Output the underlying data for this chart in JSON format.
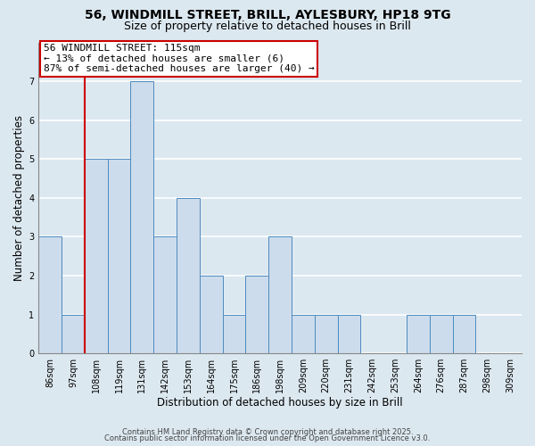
{
  "title_line1": "56, WINDMILL STREET, BRILL, AYLESBURY, HP18 9TG",
  "title_line2": "Size of property relative to detached houses in Brill",
  "xlabel": "Distribution of detached houses by size in Brill",
  "ylabel": "Number of detached properties",
  "bin_labels": [
    "86sqm",
    "97sqm",
    "108sqm",
    "119sqm",
    "131sqm",
    "142sqm",
    "153sqm",
    "164sqm",
    "175sqm",
    "186sqm",
    "198sqm",
    "209sqm",
    "220sqm",
    "231sqm",
    "242sqm",
    "253sqm",
    "264sqm",
    "276sqm",
    "287sqm",
    "298sqm",
    "309sqm"
  ],
  "bar_values": [
    3,
    1,
    5,
    5,
    7,
    3,
    4,
    2,
    1,
    2,
    3,
    1,
    1,
    1,
    0,
    0,
    1,
    1,
    1,
    0,
    0
  ],
  "bar_color": "#ccdcec",
  "bar_edge_color": "#4e8abf",
  "vline_color": "#cc0000",
  "annotation_title": "56 WINDMILL STREET: 115sqm",
  "annotation_line2": "← 13% of detached houses are smaller (6)",
  "annotation_line3": "87% of semi-detached houses are larger (40) →",
  "annotation_box_color": "#ffffff",
  "annotation_box_edge": "#cc0000",
  "ylim": [
    0,
    8
  ],
  "yticks": [
    0,
    1,
    2,
    3,
    4,
    5,
    6,
    7,
    8
  ],
  "background_color": "#dce8f0",
  "plot_bg_color": "#dce8f0",
  "grid_color": "#ffffff",
  "footer_line1": "Contains HM Land Registry data © Crown copyright and database right 2025.",
  "footer_line2": "Contains public sector information licensed under the Open Government Licence v3.0.",
  "title_fontsize": 10,
  "subtitle_fontsize": 9,
  "axis_label_fontsize": 8.5,
  "tick_fontsize": 7,
  "annotation_fontsize": 8,
  "footer_fontsize": 6
}
